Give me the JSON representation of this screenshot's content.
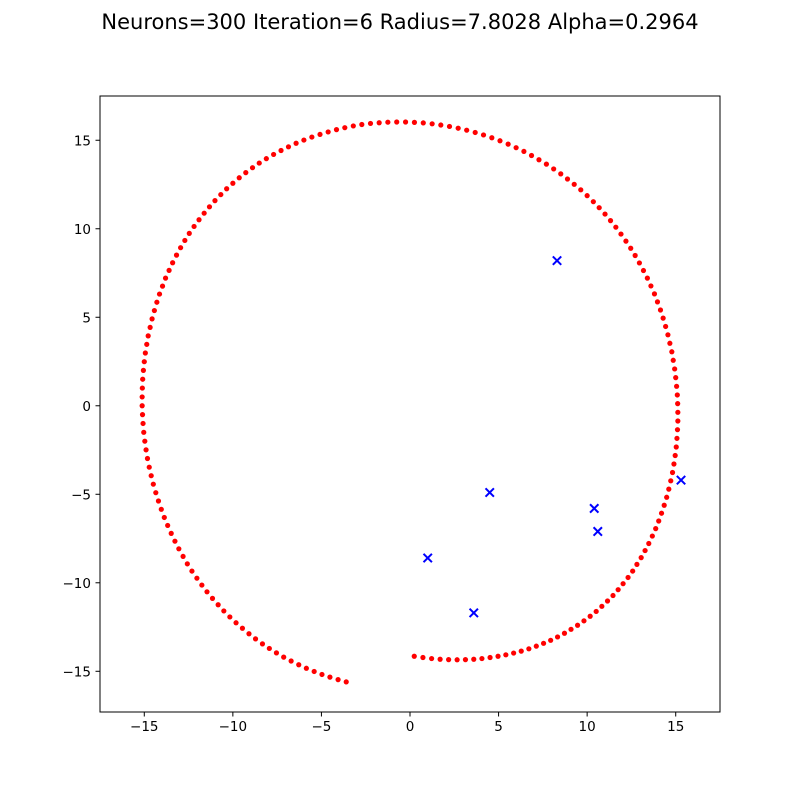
{
  "chart_data": {
    "type": "scatter",
    "title": "Neurons=300 Iteration=6 Radius=7.8028 Alpha=0.2964",
    "xlabel": "",
    "ylabel": "",
    "xlim": [
      -17.5,
      17.5
    ],
    "ylim": [
      -17.3,
      17.5
    ],
    "xticks": [
      -15,
      -10,
      -5,
      0,
      5,
      10,
      15
    ],
    "yticks": [
      -15,
      -10,
      -5,
      0,
      5,
      10,
      15
    ],
    "xtick_labels": [
      "−15",
      "−10",
      "−5",
      "0",
      "5",
      "10",
      "15"
    ],
    "ytick_labels": [
      "−15",
      "−10",
      "−5",
      "0",
      "5",
      "10",
      "15"
    ],
    "grid": false,
    "colors": {
      "neurons": "#ff0000",
      "samples": "#0000ff",
      "axes": "#000000"
    },
    "series": [
      {
        "marker": "dot",
        "color": "#ff0000",
        "x": [
          -3.6,
          -4.06,
          -4.52,
          -4.97,
          -5.41,
          -5.85,
          -6.28,
          -6.71,
          -7.13,
          -7.54,
          -7.94,
          -8.33,
          -8.72,
          -9.09,
          -9.46,
          -9.82,
          -10.17,
          -10.51,
          -10.83,
          -11.15,
          -11.46,
          -11.75,
          -12.03,
          -12.31,
          -12.57,
          -12.81,
          -13.05,
          -13.27,
          -13.48,
          -13.68,
          -13.87,
          -14.04,
          -14.2,
          -14.35,
          -14.49,
          -14.61,
          -14.72,
          -14.82,
          -14.9,
          -14.97,
          -15.03,
          -15.07,
          -15.1,
          -15.12,
          -15.12,
          -15.11,
          -15.09,
          -15.05,
          -15.0,
          -14.94,
          -14.86,
          -14.78,
          -14.67,
          -14.56,
          -14.43,
          -14.29,
          -14.14,
          -13.97,
          -13.8,
          -13.6,
          -13.4,
          -13.18,
          -12.95,
          -12.71,
          -12.46,
          -12.19,
          -11.91,
          -11.62,
          -11.32,
          -11.01,
          -10.68,
          -10.35,
          -10.0,
          -9.64,
          -9.27,
          -8.89,
          -8.51,
          -8.11,
          -7.7,
          -7.28,
          -6.86,
          -6.43,
          -5.99,
          -5.54,
          -5.08,
          -4.62,
          -4.15,
          -3.68,
          -3.2,
          -2.72,
          -2.23,
          -1.74,
          -1.25,
          -0.75,
          -0.25,
          0.25,
          0.75,
          1.25,
          1.74,
          2.23,
          2.72,
          3.2,
          3.68,
          4.15,
          4.62,
          5.08,
          5.54,
          5.99,
          6.43,
          6.86,
          7.28,
          7.7,
          8.11,
          8.51,
          8.89,
          9.27,
          9.64,
          10.0,
          10.35,
          10.68,
          11.01,
          11.32,
          11.62,
          11.91,
          12.19,
          12.46,
          12.71,
          12.95,
          13.18,
          13.4,
          13.6,
          13.8,
          13.97,
          14.14,
          14.29,
          14.43,
          14.56,
          14.67,
          14.78,
          14.86,
          14.94,
          15.0,
          15.05,
          15.09,
          15.11,
          15.12,
          15.12,
          15.1,
          15.07,
          15.03,
          14.97,
          14.9,
          14.82,
          14.72,
          14.61,
          14.49,
          14.35,
          14.2,
          14.04,
          13.87,
          13.68,
          13.48,
          13.27,
          13.05,
          12.81,
          12.57,
          12.31,
          12.03,
          11.75,
          11.46,
          11.15,
          10.83,
          10.51,
          10.17,
          9.82,
          9.46,
          9.09,
          8.72,
          8.33,
          7.94,
          7.54,
          7.13,
          6.71,
          6.28,
          5.85,
          5.41,
          4.97,
          4.52,
          4.06,
          3.6,
          3.13,
          2.66,
          2.18,
          1.7,
          1.22,
          0.73,
          0.24
        ],
        "y": [
          -15.6,
          -15.47,
          -15.33,
          -15.18,
          -15.01,
          -14.83,
          -14.63,
          -14.42,
          -14.2,
          -13.96,
          -13.71,
          -13.45,
          -13.17,
          -12.88,
          -12.57,
          -12.26,
          -11.93,
          -11.59,
          -11.24,
          -10.88,
          -10.51,
          -10.13,
          -9.74,
          -9.34,
          -8.93,
          -8.51,
          -8.08,
          -7.65,
          -7.21,
          -6.76,
          -6.31,
          -5.85,
          -5.38,
          -4.91,
          -4.43,
          -3.95,
          -3.47,
          -2.98,
          -2.49,
          -2.0,
          -1.5,
          -1.0,
          -0.5,
          0.0,
          0.5,
          1.0,
          1.5,
          2.0,
          2.49,
          2.98,
          3.47,
          3.95,
          4.43,
          4.91,
          5.38,
          5.85,
          6.31,
          6.76,
          7.21,
          7.65,
          8.08,
          8.51,
          8.93,
          9.34,
          9.74,
          10.13,
          10.51,
          10.88,
          11.24,
          11.59,
          11.93,
          12.26,
          12.57,
          12.88,
          13.17,
          13.45,
          13.71,
          13.96,
          14.2,
          14.42,
          14.63,
          14.83,
          15.01,
          15.18,
          15.33,
          15.47,
          15.6,
          15.71,
          15.81,
          15.89,
          15.95,
          15.99,
          16.02,
          16.03,
          16.03,
          16.01,
          15.98,
          15.93,
          15.86,
          15.78,
          15.68,
          15.57,
          15.44,
          15.3,
          15.14,
          14.97,
          14.78,
          14.58,
          14.37,
          14.14,
          13.9,
          13.65,
          13.38,
          13.1,
          12.81,
          12.51,
          12.2,
          11.87,
          11.53,
          11.19,
          10.83,
          10.46,
          10.09,
          9.7,
          9.3,
          8.9,
          8.49,
          8.07,
          7.64,
          7.21,
          6.77,
          6.32,
          5.87,
          5.41,
          4.95,
          4.48,
          4.01,
          3.53,
          3.05,
          2.57,
          2.08,
          1.59,
          1.1,
          0.61,
          0.12,
          -0.37,
          -0.86,
          -1.35,
          -1.84,
          -2.33,
          -2.81,
          -3.29,
          -3.77,
          -4.24,
          -4.71,
          -5.17,
          -5.62,
          -6.07,
          -6.51,
          -6.94,
          -7.36,
          -7.78,
          -8.18,
          -8.58,
          -8.96,
          -9.34,
          -9.7,
          -10.05,
          -10.39,
          -10.72,
          -11.03,
          -11.33,
          -11.62,
          -11.89,
          -12.15,
          -12.4,
          -12.63,
          -12.85,
          -13.06,
          -13.25,
          -13.42,
          -13.58,
          -13.73,
          -13.86,
          -13.97,
          -14.07,
          -14.15,
          -14.22,
          -14.28,
          -14.32,
          -14.34,
          -14.35,
          -14.34,
          -14.32,
          -14.28,
          -14.22,
          -14.15
        ]
      },
      {
        "marker": "x",
        "color": "#0000ff",
        "x": [
          8.3,
          4.5,
          10.4,
          10.6,
          15.3,
          1.0,
          3.6
        ],
        "y": [
          8.2,
          -4.9,
          -5.8,
          -7.1,
          -4.2,
          -8.6,
          -11.7
        ]
      }
    ]
  }
}
